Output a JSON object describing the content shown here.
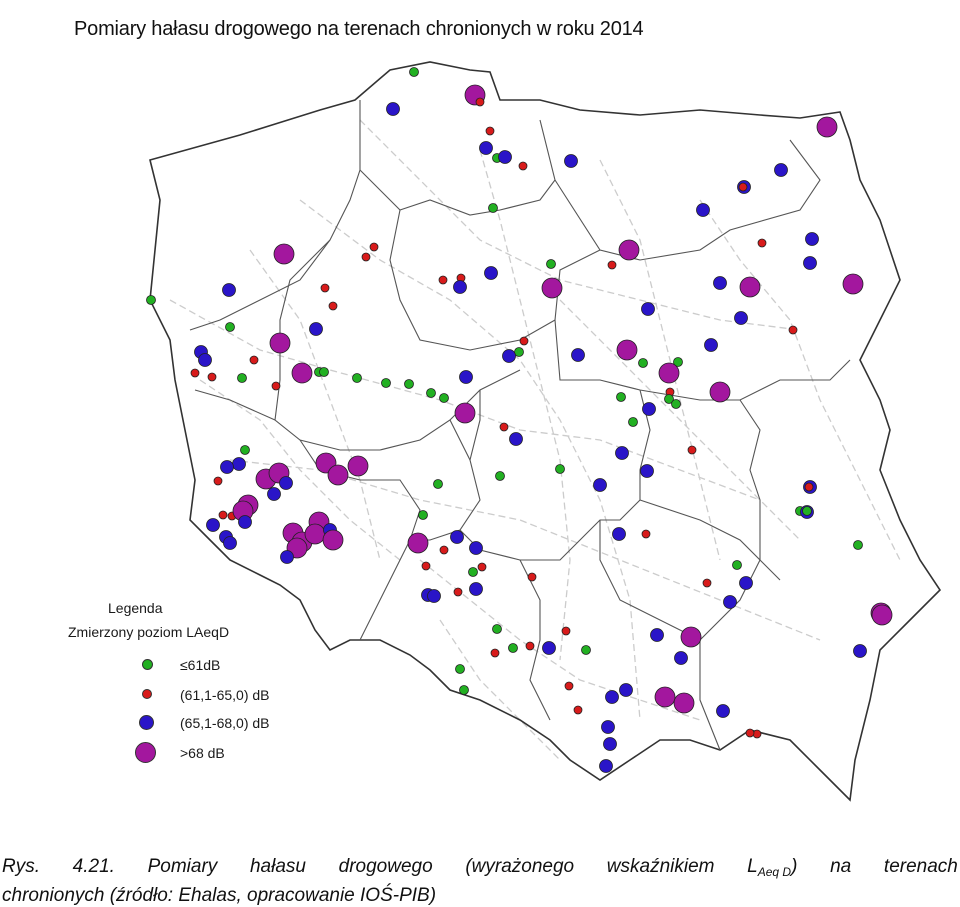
{
  "title": "Pomiary hałasu drogowego na terenach chronionych w roku 2014",
  "legend": {
    "title": "Legenda",
    "subtitle": "Zmierzony poziom LAeqD",
    "items": [
      {
        "label": "≤61dB",
        "color": "#22b022",
        "size": "small"
      },
      {
        "label": "(61,1-65,0) dB",
        "color": "#d81b1b",
        "size": "small"
      },
      {
        "label": "(65,1-68,0) dB",
        "color": "#2a15c8",
        "size": "medium"
      },
      {
        "label": ">68 dB",
        "color": "#a3179e",
        "size": "large"
      }
    ]
  },
  "caption": {
    "w1": "Rys.",
    "w2": "4.21.",
    "w3": "Pomiary",
    "w4": "hałasu",
    "w5": "drogowego",
    "w6": "(wyrażonego",
    "w7": "wskaźnikiem",
    "w8": "L",
    "w8sub": "Aeq D",
    "w9": ")",
    "w10": "na",
    "w11": "terenach",
    "line2": "chronionych (źródło: Ehalas, opracowanie IOŚ-PIB)"
  },
  "map": {
    "marker_classes": [
      "le61",
      "61_65",
      "65_68",
      "gt68"
    ],
    "country_border_color": "#333333",
    "region_border_color": "#555555",
    "road_color": "#c8c8c8"
  }
}
